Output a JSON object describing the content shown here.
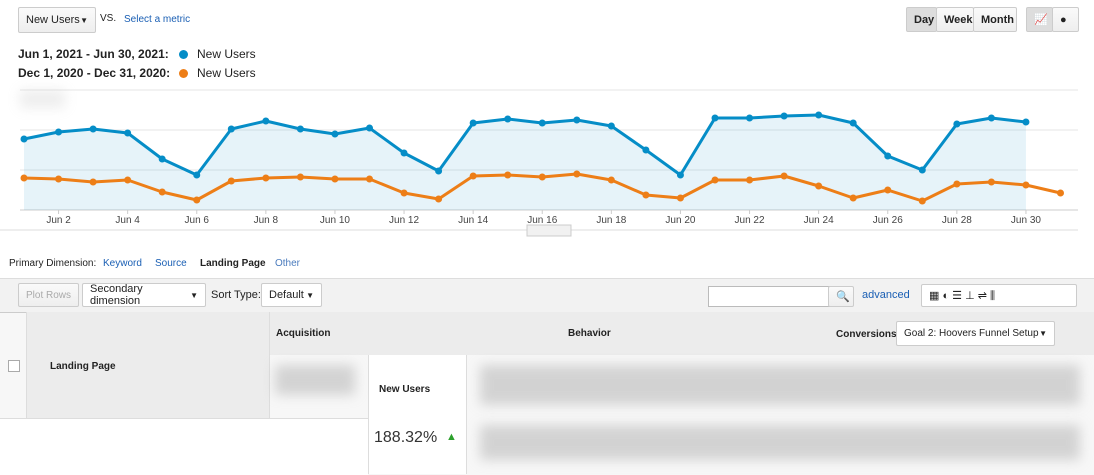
{
  "toolbar": {
    "metric": "New Users",
    "vs": "VS.",
    "select_metric": "Select a metric",
    "day": "Day",
    "week": "Week",
    "month": "Month"
  },
  "chart_data": {
    "type": "line",
    "categories": [
      null,
      "Jun 2",
      null,
      "Jun 4",
      null,
      "Jun 6",
      null,
      "Jun 8",
      null,
      "Jun 10",
      null,
      "Jun 12",
      null,
      "Jun 14",
      null,
      "Jun 16",
      null,
      "Jun 18",
      null,
      "Jun 20",
      null,
      "Jun 22",
      null,
      "Jun 24",
      null,
      "Jun 26",
      null,
      "Jun 28",
      null,
      "Jun 30",
      null
    ],
    "series": [
      {
        "name": "New Users",
        "period": "Jun 1, 2021 - Jun 30, 2021:",
        "color": "#058dc7",
        "area": true,
        "values": [
          71,
          78,
          81,
          77,
          51,
          35,
          81,
          89,
          81,
          76,
          82,
          57,
          39,
          87,
          91,
          87,
          90,
          84,
          60,
          35,
          92,
          92,
          94,
          95,
          87,
          54,
          40,
          86,
          92,
          88,
          null
        ]
      },
      {
        "name": "New Users",
        "period": "Dec 1, 2020 - Dec 31, 2020:",
        "color": "#ed7e17",
        "area": false,
        "values": [
          32,
          31,
          28,
          30,
          18,
          10,
          29,
          32,
          33,
          31,
          31,
          17,
          11,
          34,
          35,
          33,
          36,
          30,
          15,
          12,
          30,
          30,
          34,
          24,
          12,
          20,
          9,
          26,
          28,
          25,
          17
        ]
      }
    ],
    "ylim": [
      0,
      120
    ],
    "grid": true
  },
  "dimension": {
    "label": "Primary Dimension:",
    "options": [
      "Keyword",
      "Source",
      "Landing Page",
      "Other"
    ]
  },
  "controls": {
    "plot_rows": "Plot Rows",
    "secondary": "Secondary dimension",
    "sort_type": "Sort Type:",
    "sort_default": "Default",
    "advanced": "advanced"
  },
  "table": {
    "groups": [
      "Acquisition",
      "Behavior",
      "Conversions"
    ],
    "goal": "Goal 2: Hoovers Funnel Setup",
    "first_column": "Landing Page",
    "column": "New Users",
    "cell": "188.32%"
  }
}
